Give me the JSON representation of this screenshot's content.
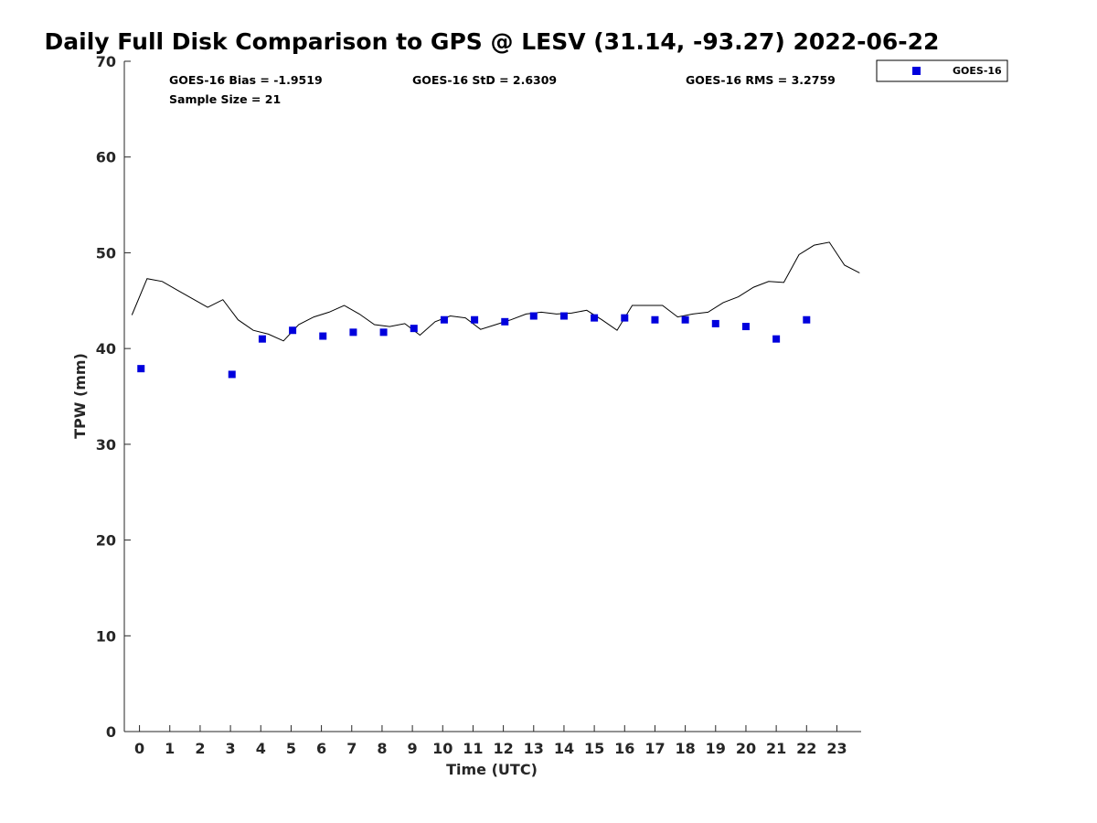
{
  "chart_data": {
    "type": "scatter",
    "title": "Daily Full Disk Comparison to GPS @ LESV (31.14, -93.27) 2022-06-22",
    "xlabel": "Time (UTC)",
    "ylabel": "TPW (mm)",
    "xlim": [
      -0.5,
      23.8
    ],
    "ylim": [
      0,
      70
    ],
    "xticks": [
      0,
      1,
      2,
      3,
      4,
      5,
      6,
      7,
      8,
      9,
      10,
      11,
      12,
      13,
      14,
      15,
      16,
      17,
      18,
      19,
      20,
      21,
      22,
      23
    ],
    "yticks": [
      0,
      10,
      20,
      30,
      40,
      50,
      60,
      70
    ],
    "grid": false,
    "legend_position": "top-right (outside)",
    "stats": {
      "bias": "GOES-16 Bias = -1.9519",
      "std": "GOES-16 StD = 2.6309",
      "rms": "GOES-16 RMS = 3.2759",
      "sample": "Sample Size = 21"
    },
    "series": [
      {
        "name": "GOES-16",
        "kind": "scatter",
        "marker": "square",
        "color": "#0000dd",
        "x": [
          0.05,
          3.05,
          4.05,
          5.05,
          6.05,
          7.05,
          8.05,
          9.05,
          10.05,
          11.05,
          12.05,
          13.0,
          14.0,
          15.0,
          16.0,
          17.0,
          18.0,
          19.0,
          20.0,
          21.0,
          22.0
        ],
        "y": [
          37.9,
          37.3,
          41.0,
          41.9,
          41.3,
          41.7,
          41.7,
          42.1,
          43.0,
          43.0,
          42.8,
          43.4,
          43.4,
          43.2,
          43.2,
          43.0,
          43.0,
          42.6,
          42.3,
          41.0,
          43.0
        ]
      },
      {
        "kind": "line",
        "color": "#000000",
        "x": [
          -0.25,
          0.25,
          0.75,
          1.25,
          1.75,
          2.25,
          2.75,
          3.25,
          3.75,
          4.25,
          4.75,
          5.25,
          5.75,
          6.25,
          6.75,
          7.25,
          7.75,
          8.25,
          8.75,
          9.25,
          9.75,
          10.25,
          10.75,
          11.25,
          11.75,
          12.25,
          12.75,
          13.25,
          13.75,
          14.25,
          14.75,
          15.25,
          15.75,
          16.25,
          16.75,
          17.25,
          17.75,
          18.25,
          18.75,
          19.25,
          19.75,
          20.25,
          20.75,
          21.25,
          21.75,
          22.25,
          22.75,
          23.25,
          23.75
        ],
        "y": [
          43.5,
          47.3,
          47.0,
          46.1,
          45.2,
          44.3,
          45.1,
          43.0,
          41.9,
          41.5,
          40.8,
          42.5,
          43.3,
          43.8,
          44.5,
          43.6,
          42.5,
          42.3,
          42.6,
          41.4,
          42.8,
          43.4,
          43.2,
          42.0,
          42.5,
          43.0,
          43.6,
          43.8,
          43.6,
          43.7,
          44.0,
          43.0,
          41.9,
          44.5,
          44.5,
          44.5,
          43.3,
          43.6,
          43.8,
          44.8,
          45.4,
          46.4,
          47.0,
          46.9,
          49.8,
          50.8,
          51.1,
          48.7,
          47.9
        ]
      }
    ]
  }
}
